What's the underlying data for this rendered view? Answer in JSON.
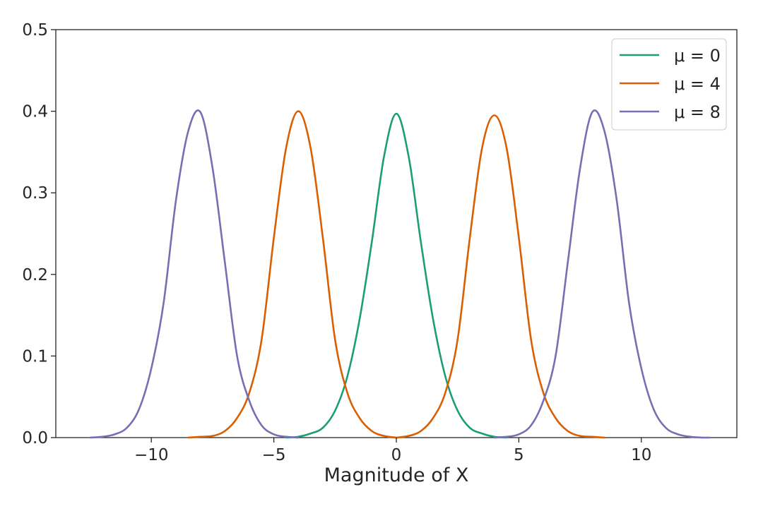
{
  "chart_data": {
    "type": "line",
    "title": "",
    "xlabel": "Magnitude of X",
    "ylabel": "",
    "xlim": [
      -13.9,
      13.9
    ],
    "ylim": [
      0,
      0.5
    ],
    "xticks": [
      -10,
      -5,
      0,
      5,
      10
    ],
    "xtick_labels": [
      "−10",
      "−5",
      "0",
      "5",
      "10"
    ],
    "yticks": [
      0.0,
      0.1,
      0.2,
      0.3,
      0.4,
      0.5
    ],
    "ytick_labels": [
      "0.0",
      "0.1",
      "0.2",
      "0.3",
      "0.4",
      "0.5"
    ],
    "grid": false,
    "legend_position": "top-right",
    "legend": [
      "μ = 0",
      "μ = 4",
      "μ = 8"
    ],
    "series": [
      {
        "name": "μ = 0",
        "color": "#1b9e77",
        "curves": [
          {
            "x": [
              -4.5,
              -4.0,
              -3.5,
              -3.0,
              -2.5,
              -2.0,
              -1.5,
              -1.0,
              -0.5,
              0.0,
              0.5,
              1.0,
              1.5,
              2.0,
              2.5,
              3.0,
              3.5,
              4.0,
              4.5
            ],
            "y": [
              0.0,
              0.001,
              0.005,
              0.012,
              0.033,
              0.075,
              0.145,
              0.24,
              0.345,
              0.397,
              0.345,
              0.24,
              0.145,
              0.075,
              0.033,
              0.012,
              0.005,
              0.001,
              0.0
            ]
          }
        ]
      },
      {
        "name": "μ = 4",
        "color": "#d95f02",
        "curves": [
          {
            "x": [
              -8.5,
              -8.0,
              -7.5,
              -7.0,
              -6.5,
              -6.0,
              -5.5,
              -5.0,
              -4.5,
              -4.0,
              -3.5,
              -3.0,
              -2.5,
              -2.0,
              -1.5,
              -1.0,
              -0.5,
              0.0
            ],
            "y": [
              0.0,
              0.001,
              0.002,
              0.008,
              0.024,
              0.055,
              0.12,
              0.245,
              0.355,
              0.4,
              0.355,
              0.245,
              0.12,
              0.055,
              0.024,
              0.008,
              0.002,
              0.0
            ]
          },
          {
            "x": [
              0.0,
              0.5,
              1.0,
              1.5,
              2.0,
              2.5,
              3.0,
              3.5,
              4.0,
              4.5,
              5.0,
              5.5,
              6.0,
              6.5,
              7.0,
              7.5,
              8.0,
              8.5
            ],
            "y": [
              0.0,
              0.002,
              0.008,
              0.024,
              0.055,
              0.12,
              0.245,
              0.355,
              0.395,
              0.355,
              0.245,
              0.12,
              0.055,
              0.024,
              0.008,
              0.002,
              0.001,
              0.0
            ]
          }
        ]
      },
      {
        "name": "μ = 8",
        "color": "#7570b3",
        "curves": [
          {
            "x": [
              -12.5,
              -12.0,
              -11.5,
              -11.0,
              -10.5,
              -10.0,
              -9.5,
              -9.0,
              -8.5,
              -8.0,
              -7.5,
              -7.0,
              -6.5,
              -6.0,
              -5.5,
              -5.0,
              -4.5,
              -4.0
            ],
            "y": [
              0.0,
              0.001,
              0.004,
              0.012,
              0.035,
              0.085,
              0.165,
              0.29,
              0.375,
              0.399,
              0.33,
              0.215,
              0.1,
              0.045,
              0.015,
              0.004,
              0.001,
              0.0
            ]
          },
          {
            "x": [
              4.0,
              4.5,
              5.0,
              5.5,
              6.0,
              6.5,
              7.0,
              7.5,
              8.0,
              8.5,
              9.0,
              9.5,
              10.0,
              10.5,
              11.0,
              11.5,
              12.0,
              12.5,
              12.8
            ],
            "y": [
              0.0,
              0.001,
              0.004,
              0.015,
              0.045,
              0.1,
              0.215,
              0.33,
              0.399,
              0.375,
              0.29,
              0.165,
              0.085,
              0.035,
              0.012,
              0.004,
              0.001,
              0.0,
              0.0
            ]
          }
        ]
      }
    ]
  }
}
